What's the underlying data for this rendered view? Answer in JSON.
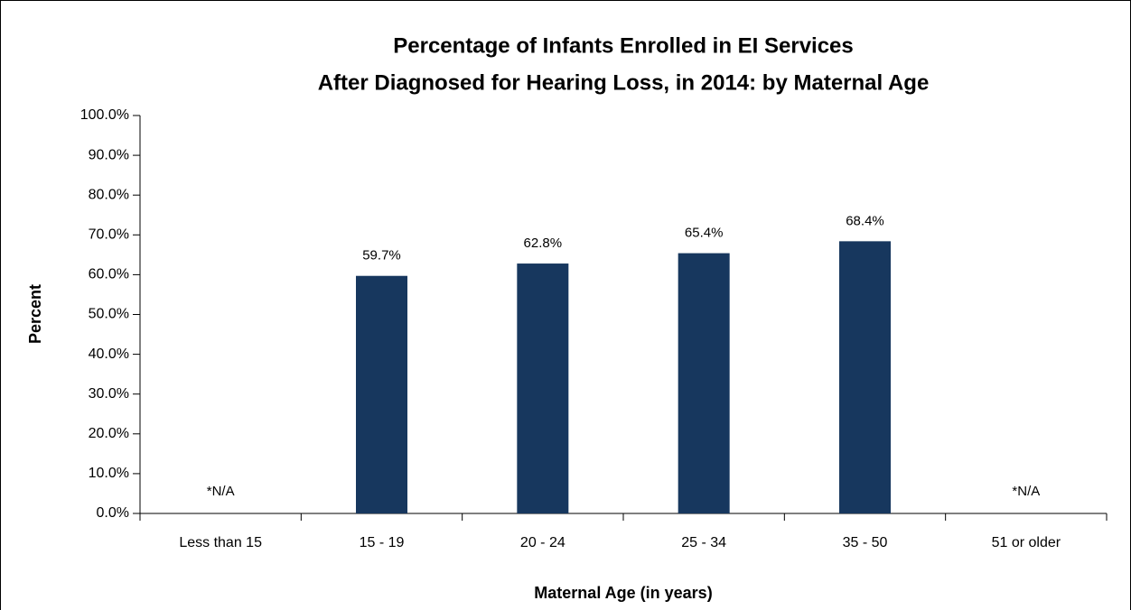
{
  "chart_data": {
    "type": "bar",
    "title": [
      "Percentage of Infants Enrolled in EI Services",
      "After Diagnosed for Hearing Loss, in 2014: by Maternal Age"
    ],
    "x_label": "Maternal Age (in years)",
    "y_label": "Percent",
    "categories": [
      "Less than 15",
      "15 - 19",
      "20 - 24",
      "25 - 34",
      "35 - 50",
      "51 or older"
    ],
    "values": [
      null,
      59.7,
      62.8,
      65.4,
      68.4,
      null
    ],
    "value_labels": [
      "*N/A",
      "59.7%",
      "62.8%",
      "65.4%",
      "68.4%",
      "*N/A"
    ],
    "color": "#17375e",
    "ylim": [
      0,
      100
    ],
    "yticks": [
      {
        "value": 0,
        "label": "0.0%"
      },
      {
        "value": 10,
        "label": "10.0%"
      },
      {
        "value": 20,
        "label": "20.0%"
      },
      {
        "value": 30,
        "label": "30.0%"
      },
      {
        "value": 40,
        "label": "40.0%"
      },
      {
        "value": 50,
        "label": "50.0%"
      },
      {
        "value": 60,
        "label": "60.0%"
      },
      {
        "value": 70,
        "label": "70.0%"
      },
      {
        "value": 80,
        "label": "80.0%"
      },
      {
        "value": 90,
        "label": "90.0%"
      },
      {
        "value": 100,
        "label": "100.0%"
      }
    ],
    "grid": false
  }
}
